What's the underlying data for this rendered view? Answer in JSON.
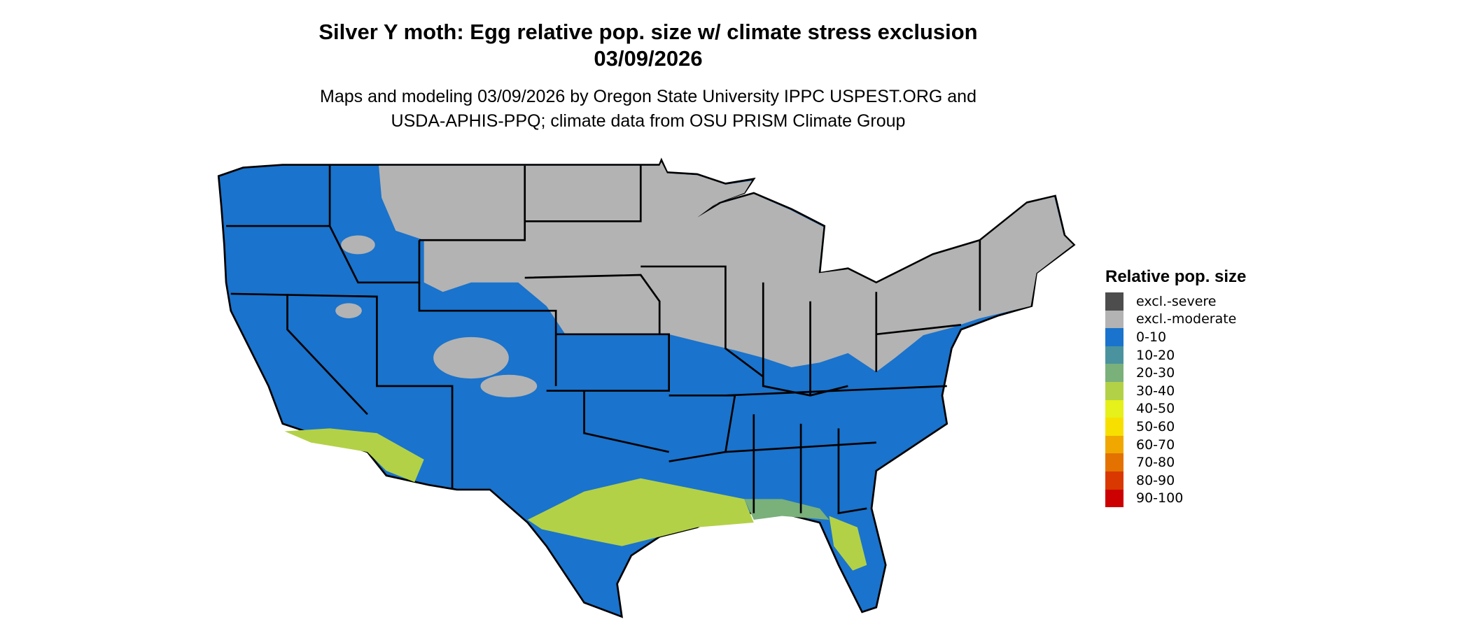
{
  "title_line1": "Silver Y moth: Egg relative pop. size w/ climate stress exclusion",
  "title_line2": "03/09/2026",
  "subtitle_line1": "Maps and modeling 03/09/2026 by Oregon State University IPPC USPEST.ORG and",
  "subtitle_line2": "USDA-APHIS-PPQ; climate data from OSU PRISM Climate Group",
  "legend": {
    "title": "Relative pop. size",
    "items": [
      {
        "label": "excl.-severe",
        "color": "#4d4d4d"
      },
      {
        "label": "excl.-moderate",
        "color": "#b3b3b3"
      },
      {
        "label": "0-10",
        "color": "#1a73cc"
      },
      {
        "label": "10-20",
        "color": "#4a939e"
      },
      {
        "label": "20-30",
        "color": "#7ab07a"
      },
      {
        "label": "30-40",
        "color": "#b3d147"
      },
      {
        "label": "40-50",
        "color": "#e6f01a"
      },
      {
        "label": "50-60",
        "color": "#f7e000"
      },
      {
        "label": "60-70",
        "color": "#f0a800"
      },
      {
        "label": "70-80",
        "color": "#e37200"
      },
      {
        "label": "80-90",
        "color": "#d93800"
      },
      {
        "label": "90-100",
        "color": "#cc0000"
      }
    ]
  }
}
